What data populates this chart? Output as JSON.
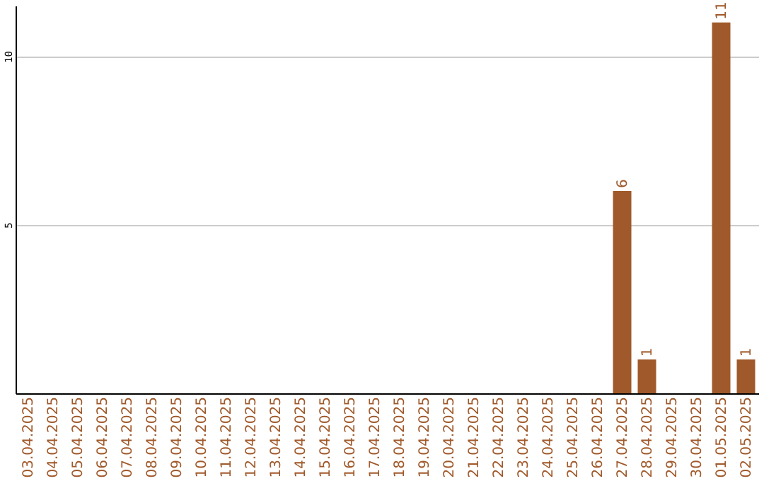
{
  "chart_data": {
    "type": "bar",
    "categories": [
      "03.04.2025",
      "04.04.2025",
      "05.04.2025",
      "06.04.2025",
      "07.04.2025",
      "08.04.2025",
      "09.04.2025",
      "10.04.2025",
      "11.04.2025",
      "12.04.2025",
      "13.04.2025",
      "14.04.2025",
      "15.04.2025",
      "16.04.2025",
      "17.04.2025",
      "18.04.2025",
      "19.04.2025",
      "20.04.2025",
      "21.04.2025",
      "22.04.2025",
      "23.04.2025",
      "24.04.2025",
      "25.04.2025",
      "26.04.2025",
      "27.04.2025",
      "28.04.2025",
      "29.04.2025",
      "30.04.2025",
      "01.05.2025",
      "02.05.2025"
    ],
    "values": [
      0,
      0,
      0,
      0,
      0,
      0,
      0,
      0,
      0,
      0,
      0,
      0,
      0,
      0,
      0,
      0,
      0,
      0,
      0,
      0,
      0,
      0,
      0,
      0,
      6,
      1,
      0,
      0,
      11,
      1
    ],
    "value_labels": [
      null,
      null,
      null,
      null,
      null,
      null,
      null,
      null,
      null,
      null,
      null,
      null,
      null,
      null,
      null,
      null,
      null,
      null,
      null,
      null,
      null,
      null,
      null,
      null,
      "6",
      "1",
      null,
      null,
      "11",
      "1"
    ],
    "color": "#a0592a",
    "ylim": [
      0,
      11.5
    ],
    "yticks": [
      5,
      10
    ],
    "grid": "y"
  }
}
